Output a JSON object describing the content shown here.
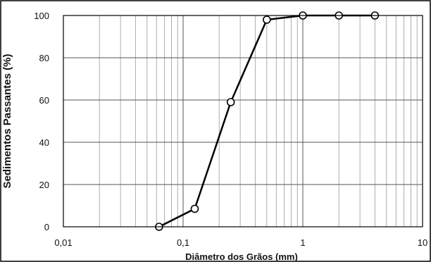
{
  "chart_data": {
    "type": "line",
    "xscale": "log",
    "xlim": [
      0.01,
      10
    ],
    "ylim": [
      0,
      100
    ],
    "xlabel": "Diâmetro dos Grãos (mm)",
    "ylabel": "Sedimentos Passantes (%)",
    "grid": true,
    "legend": "none",
    "xticks": [
      "0,01",
      "0,1",
      "1",
      "10"
    ],
    "yticks": [
      "0",
      "20",
      "40",
      "60",
      "80",
      "100"
    ],
    "series": [
      {
        "x": [
          0.063,
          0.125,
          0.25,
          0.5,
          1,
          2,
          4
        ],
        "y": [
          0,
          8.5,
          59,
          98,
          100,
          100,
          100
        ]
      }
    ]
  },
  "colors": {
    "line": "#000000",
    "marker_fill": "#ffffff",
    "grid": "#999999",
    "border": "#000000"
  }
}
